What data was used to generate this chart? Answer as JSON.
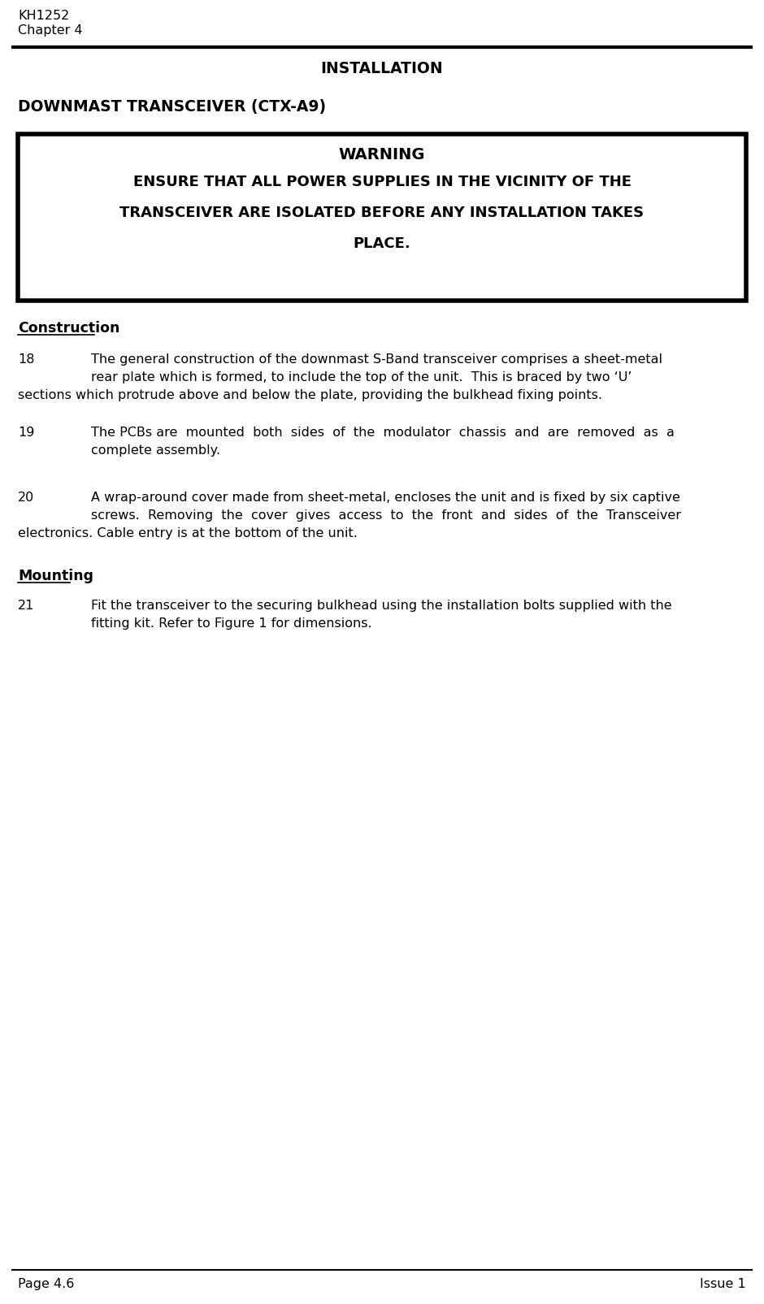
{
  "bg_color": "#ffffff",
  "header_line1": "KH1252",
  "header_line2": "Chapter 4",
  "title": "INSTALLATION",
  "subtitle": "DOWNMAST TRANSCEIVER (CTX-A9)",
  "warning_title": "WARNING",
  "warning_body_lines": [
    "ENSURE THAT ALL POWER SUPPLIES IN THE VICINITY OF THE",
    "TRANSCEIVER ARE ISOLATED BEFORE ANY INSTALLATION TAKES",
    "PLACE."
  ],
  "section1_title": "Construction",
  "para18_num": "18",
  "para18_lines_indented": [
    "The general construction of the downmast S-Band transceiver comprises a sheet-metal",
    "rear plate which is formed, to include the top of the unit.  This is braced by two ‘U’"
  ],
  "para18_line_full": "sections which protrude above and below the plate, providing the bulkhead fixing points.",
  "para19_num": "19",
  "para19_lines_indented": [
    "The PCBs are  mounted  both  sides  of  the  modulator  chassis  and  are  removed  as  a",
    "complete assembly."
  ],
  "para20_num": "20",
  "para20_lines_indented": [
    "A wrap-around cover made from sheet-metal, encloses the unit and is fixed by six captive",
    "screws.  Removing  the  cover  gives  access  to  the  front  and  sides  of  the  Transceiver"
  ],
  "para20_line_full": "electronics. Cable entry is at the bottom of the unit.",
  "section2_title": "Mounting",
  "para21_num": "21",
  "para21_lines_indented": [
    "Fit the transceiver to the securing bulkhead using the installation bolts supplied with the",
    "fitting kit. Refer to Figure 1 for dimensions."
  ],
  "footer_left": "Page 4.6",
  "footer_right": "Issue 1",
  "text_color": "#000000"
}
